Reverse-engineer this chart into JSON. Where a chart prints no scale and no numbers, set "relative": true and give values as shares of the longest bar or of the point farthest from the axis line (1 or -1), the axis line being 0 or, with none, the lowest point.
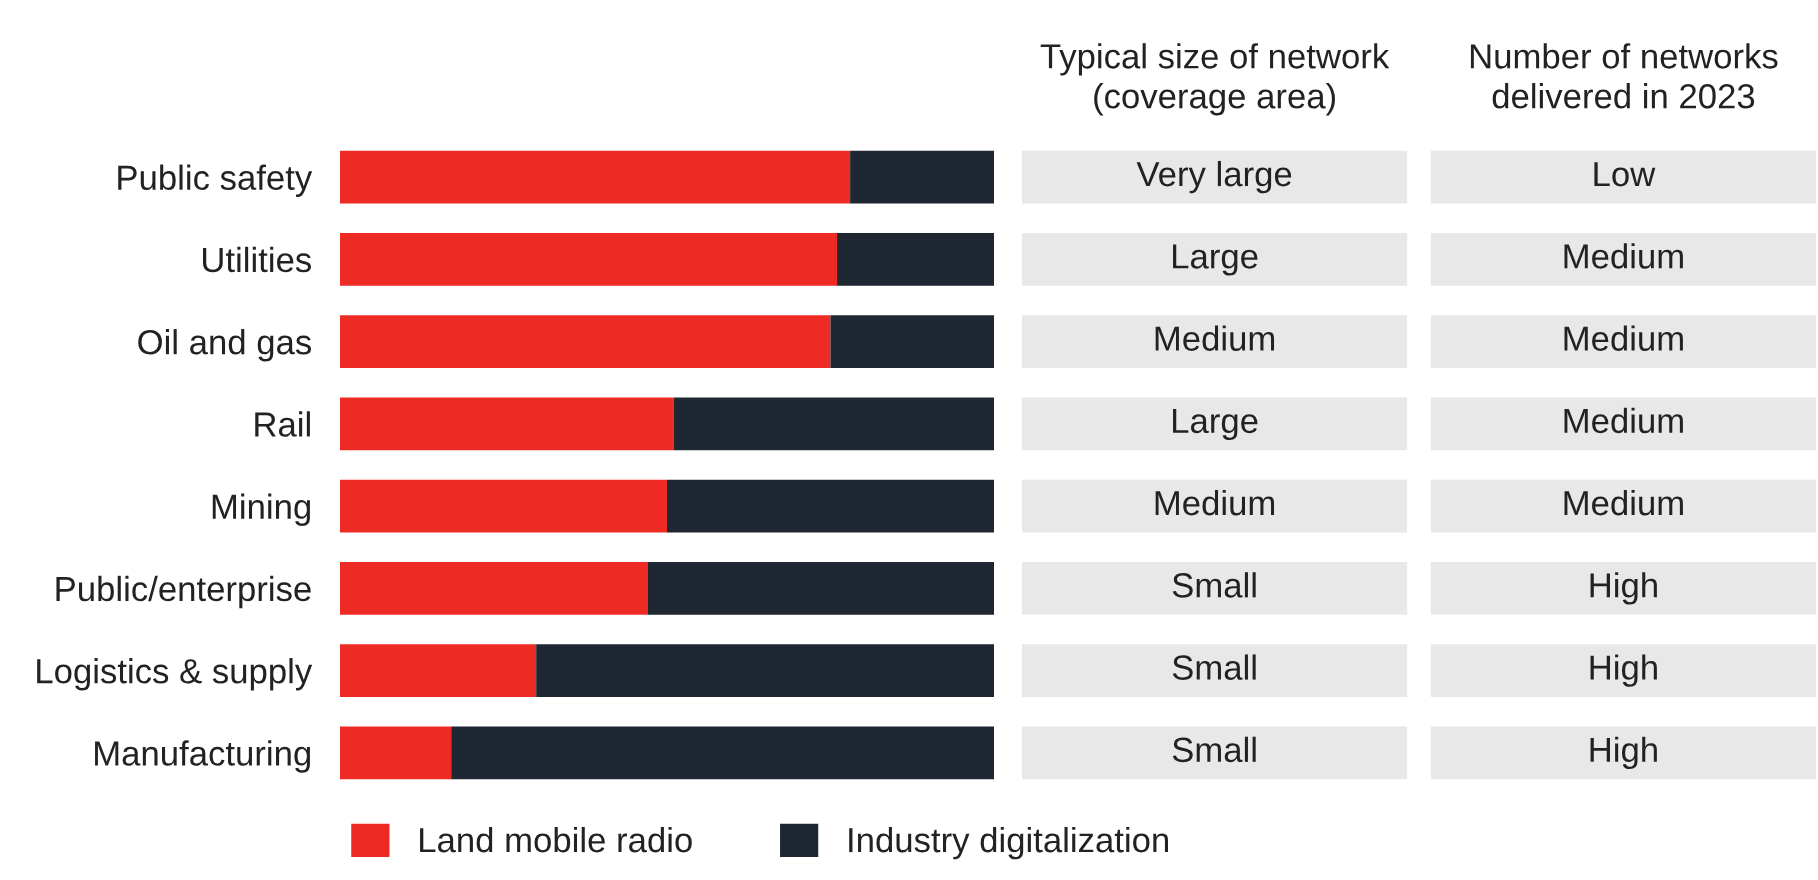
{
  "chart_data": [
    {
      "type": "bar",
      "orientation": "horizontal",
      "stacked": true,
      "relative": true,
      "legend": "bottom",
      "categories": [
        "Public safety",
        "Utilities",
        "Oil and gas",
        "Rail",
        "Mining",
        "Public/enterprise",
        "Logistics & supply",
        "Manufacturing"
      ],
      "series": [
        {
          "name": "Land mobile radio",
          "color": "#ee2a24",
          "values": [
            0.78,
            0.76,
            0.75,
            0.51,
            0.5,
            0.47,
            0.3,
            0.17
          ]
        },
        {
          "name": "Industry digitalization",
          "color": "#1e2732",
          "values": [
            0.22,
            0.24,
            0.25,
            0.49,
            0.5,
            0.53,
            0.7,
            0.83
          ]
        }
      ]
    },
    {
      "type": "other",
      "categories": [
        "Typical size of network\n(coverage area)",
        "Number of networks\ndelivered in 2023"
      ],
      "cell_labels": [
        [
          "Very large",
          "Low"
        ],
        [
          "Large",
          "Medium"
        ],
        [
          "Medium",
          "Medium"
        ],
        [
          "Large",
          "Medium"
        ],
        [
          "Medium",
          "Medium"
        ],
        [
          "Small",
          "High"
        ],
        [
          "Small",
          "High"
        ],
        [
          "Small",
          "High"
        ]
      ]
    }
  ]
}
